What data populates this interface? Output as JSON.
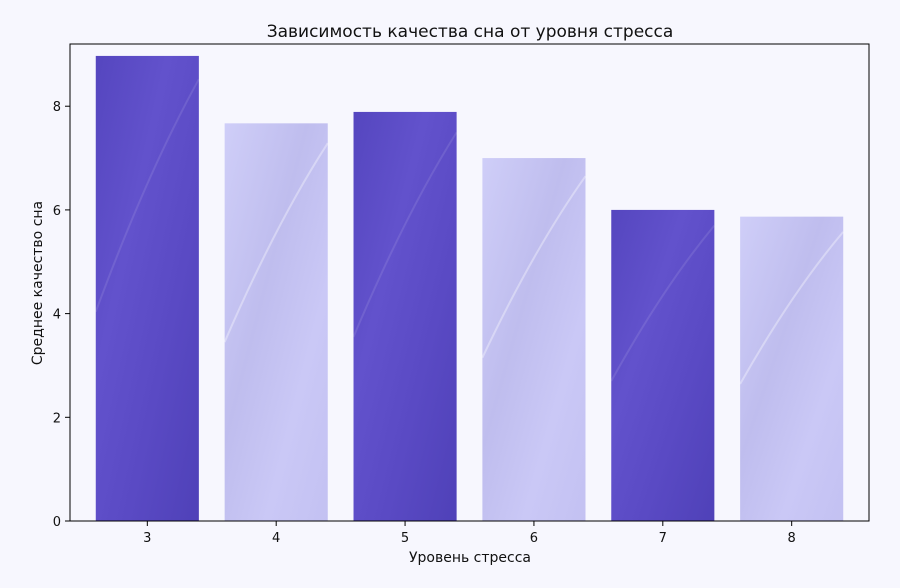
{
  "chart_data": {
    "type": "bar",
    "title": "Зависимость качества сна от уровня стресса",
    "xlabel": "Уровень стресса",
    "ylabel": "Среднее качество сна",
    "categories": [
      "3",
      "4",
      "5",
      "6",
      "7",
      "8"
    ],
    "values": [
      8.97,
      7.67,
      7.89,
      7.0,
      6.0,
      5.87
    ],
    "ylim": [
      0,
      9.2
    ],
    "yticks": [
      0,
      2,
      4,
      6,
      8
    ],
    "grid": false,
    "legend": "none",
    "colors": {
      "dark_bar": "#5a4bc6",
      "light_bar": "#c9c8f5",
      "background": "#f7f7fe",
      "axes": "#000000"
    }
  }
}
